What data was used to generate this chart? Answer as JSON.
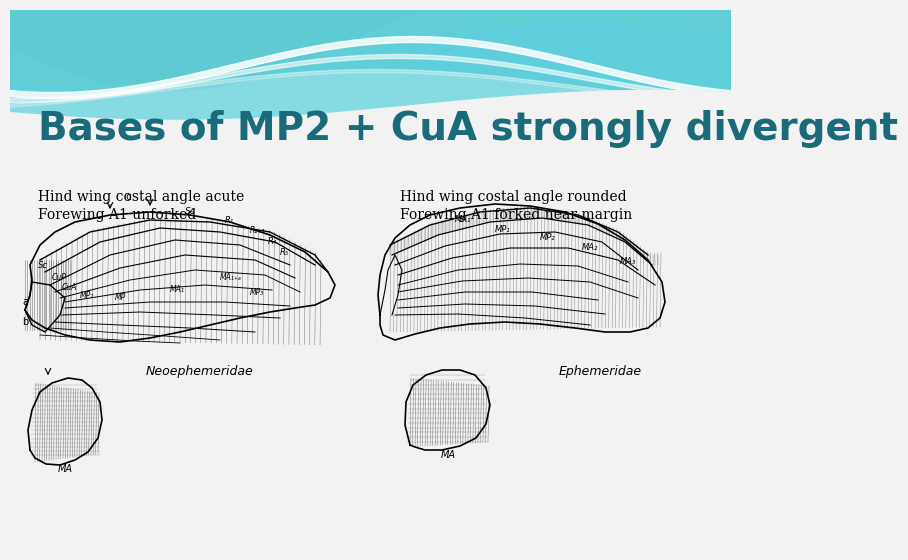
{
  "title": "Bases of MP2 + CuA strongly divergent",
  "title_color": "#1a6b7a",
  "title_fontsize": 28,
  "bg_color": "#f2f2f2",
  "left_label_line1": "Hind wing costal angle acute",
  "left_label_line2": "Forewing A1 unforked",
  "right_label_line1": "Hind wing costal angle rounded",
  "right_label_line2": "Forewing A1 forked near margin",
  "label_fontsize": 10,
  "label_color": "#000000",
  "neo_label": "Neoephemeridae",
  "eph_label": "Ephemeridae",
  "wave_top_color": "#4ec8d0",
  "wave_mid_color": "#8adde2",
  "wave_light_color": "#c5eef1",
  "wave_bg_color": "#7dd8dc"
}
